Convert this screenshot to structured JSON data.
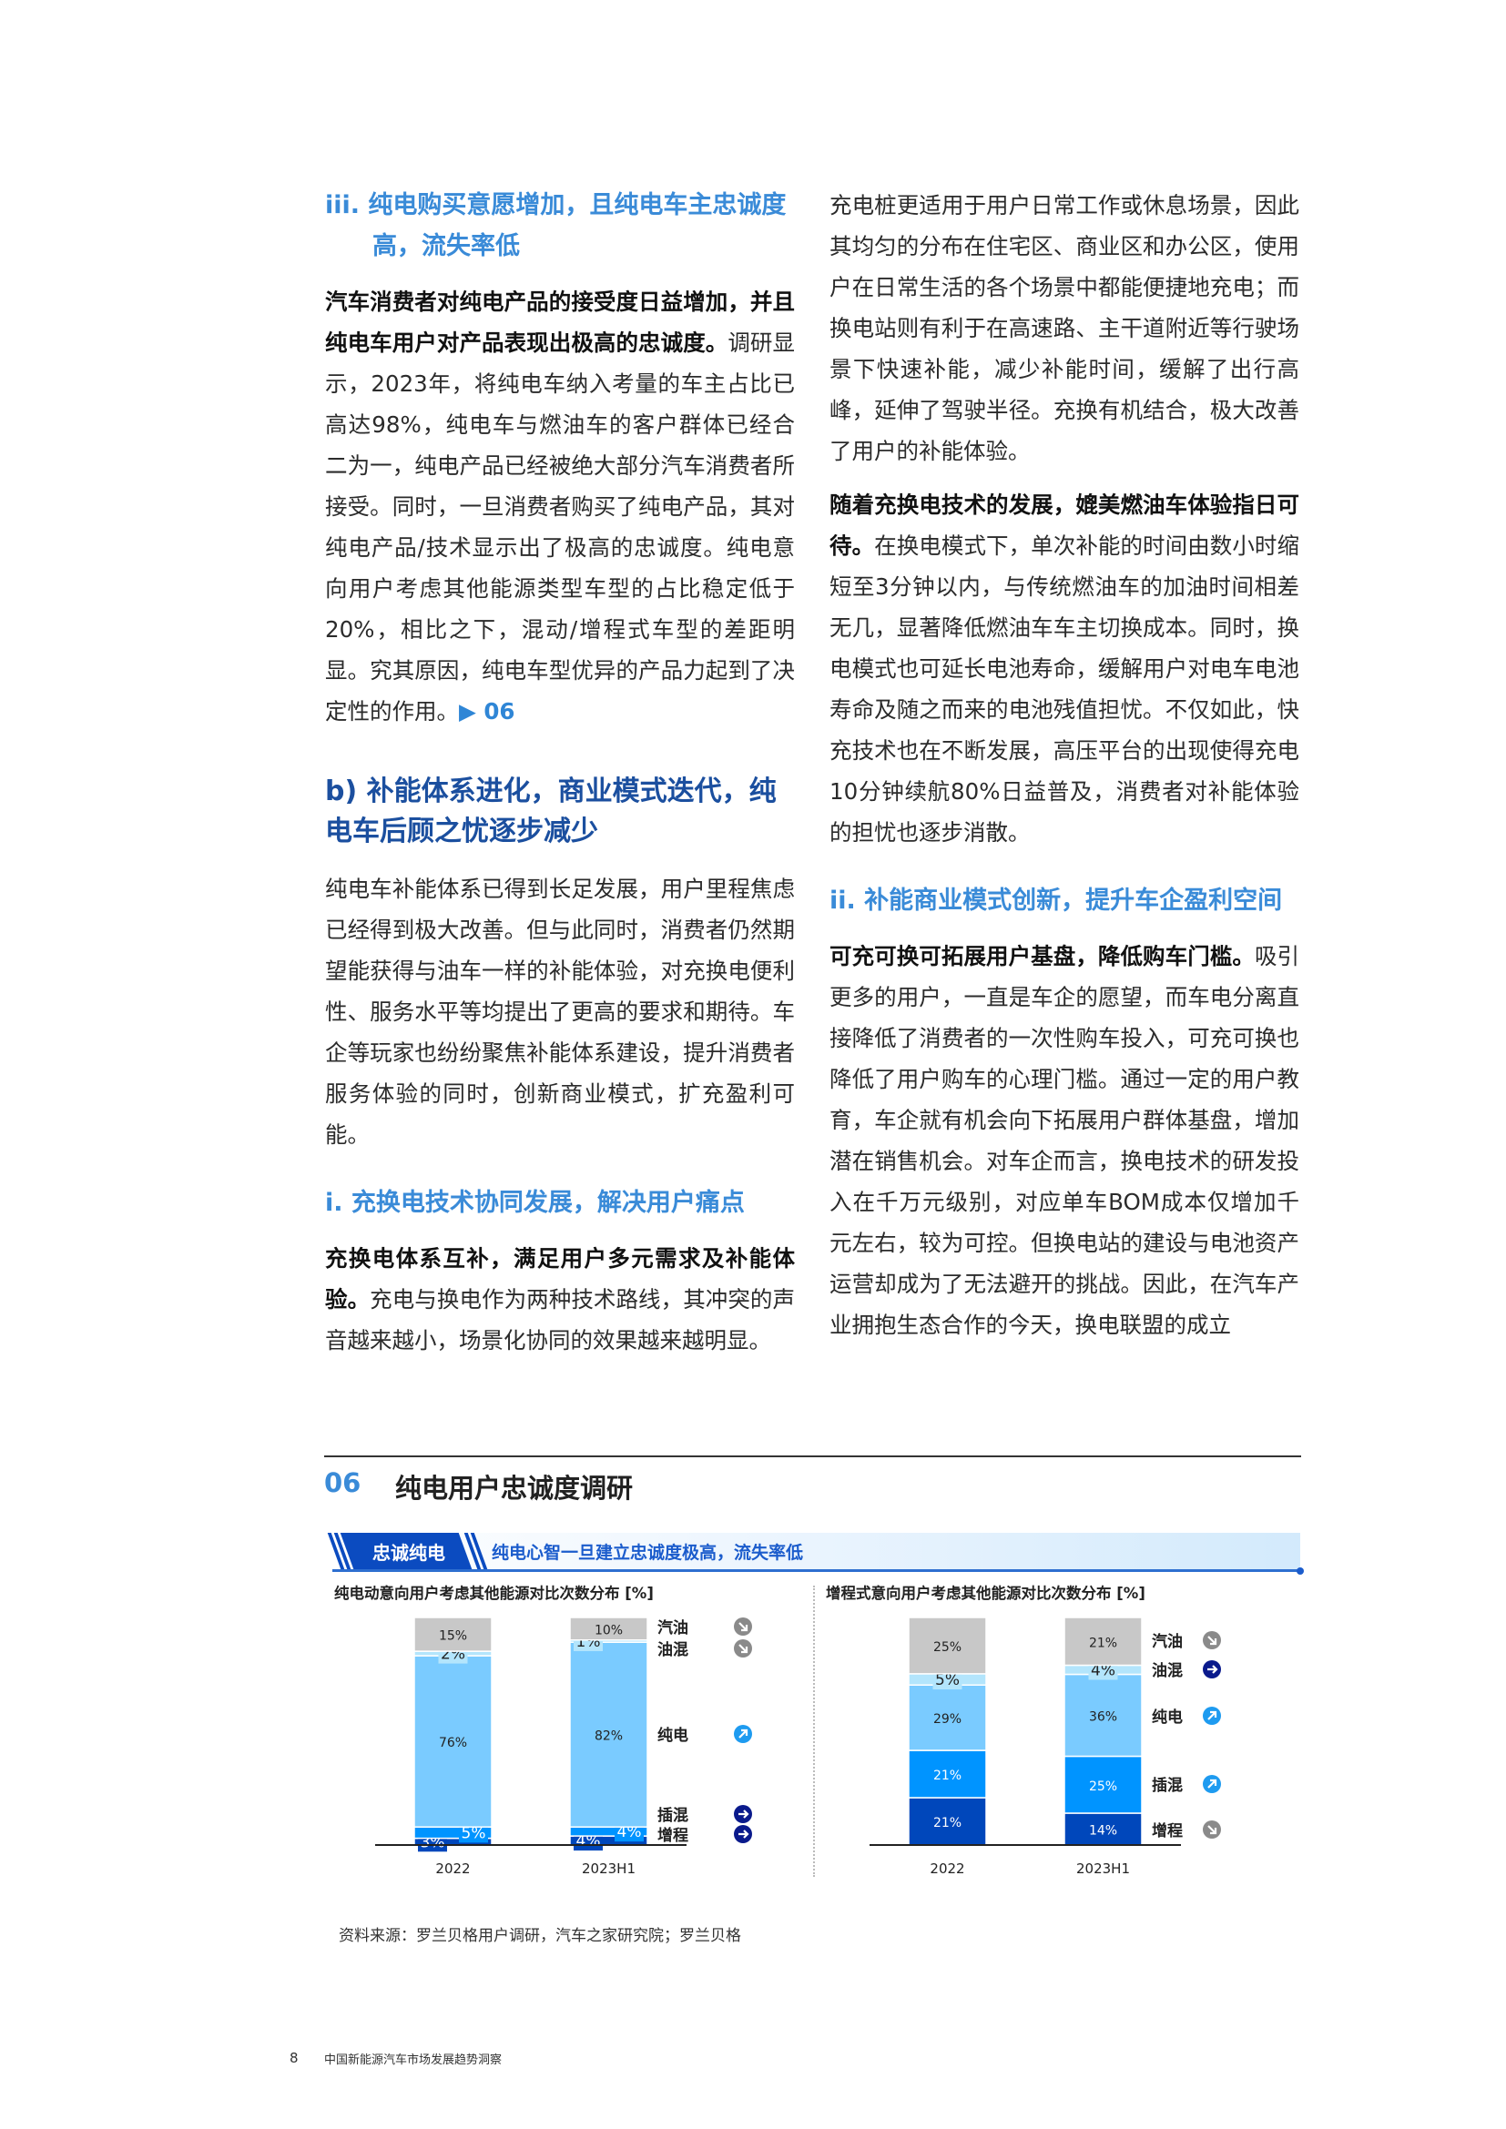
{
  "left_column": {
    "heading_iii": "iii. 纯电购买意愿增加，且纯电车主忠诚度高，流失率低",
    "para1": {
      "bold": "汽车消费者对纯电产品的接受度日益增加，并且纯电车用户对产品表现出极高的忠诚度。",
      "text": "调研显示，2023年，将纯电车纳入考量的车主占比已高达98%，纯电车与燃油车的客户群体已经合二为一，纯电产品已经被绝大部分汽车消费者所接受。同时，一旦消费者购买了纯电产品，其对纯电产品/技术显示出了极高的忠诚度。纯电意向用户考虑其他能源类型车型的占比稳定低于20%，相比之下，混动/增程式车型的差距明显。究其原因，纯电车型优异的产品力起到了决定性的作用。",
      "ref": "▶ 06"
    },
    "heading_b": "b) 补能体系进化，商业模式迭代，纯电车后顾之忧逐步减少",
    "para2": "纯电车补能体系已得到长足发展，用户里程焦虑已经得到极大改善。但与此同时，消费者仍然期望能获得与油车一样的补能体验，对充换电便利性、服务水平等均提出了更高的要求和期待。车企等玩家也纷纷聚焦补能体系建设，提升消费者服务体验的同时，创新商业模式，扩充盈利可能。",
    "heading_i": "i. 充换电技术协同发展，解决用户痛点",
    "para3": {
      "bold": "充换电体系互补，满足用户多元需求及补能体验。",
      "text": "充电与换电作为两种技术路线，其冲突的声音越来越小，场景化协同的效果越来越明显。"
    }
  },
  "right_column": {
    "para1": "充电桩更适用于用户日常工作或休息场景，因此其均匀的分布在住宅区、商业区和办公区，使用户在日常生活的各个场景中都能便捷地充电；而换电站则有利于在高速路、主干道附近等行驶场景下快速补能，减少补能时间，缓解了出行高峰，延伸了驾驶半径。充换有机结合，极大改善了用户的补能体验。",
    "para2": {
      "bold": "随着充换电技术的发展，媲美燃油车体验指日可待。",
      "text": "在换电模式下，单次补能的时间由数小时缩短至3分钟以内，与传统燃油车的加油时间相差无几，显著降低燃油车车主切换成本。同时，换电模式也可延长电池寿命，缓解用户对电车电池寿命及随之而来的电池残值担忧。不仅如此，快充技术也在不断发展，高压平台的出现使得充电10分钟续航80%日益普及，消费者对补能体验的担忧也逐步消散。"
    },
    "heading_ii": "ii. 补能商业模式创新，提升车企盈利空间",
    "para3": {
      "bold": "可充可换可拓展用户基盘，降低购车门槛。",
      "text": "吸引更多的用户，一直是车企的愿望，而车电分离直接降低了消费者的一次性购车投入，可充可换也降低了用户购车的心理门槛。通过一定的用户教育，车企就有机会向下拓展用户群体基盘，增加潜在销售机会。对车企而言，换电技术的研发投入在千万元级别，对应单车BOM成本仅增加千元左右，较为可控。但换电站的建设与电池资产运营却成为了无法避开的挑战。因此，在汽车产业拥抱生态合作的今天，换电联盟的成立"
    }
  },
  "figure": {
    "number": "06",
    "title": "纯电用户忠诚度调研",
    "tag": "忠诚纯电",
    "banner_text": "纯电心智一旦建立忠诚度极高，流失率低",
    "source": "资料来源：罗兰贝格用户调研，汽车之家研究院；罗兰贝格"
  },
  "chart_data": [
    {
      "type": "bar",
      "stacked": true,
      "title": "纯电动意向用户考虑其他能源对比次数分布 [%]",
      "categories": [
        "2022",
        "2023H1"
      ],
      "series": [
        {
          "name": "增程",
          "values": [
            3,
            4
          ],
          "color": "#0047bb",
          "trend": "flat"
        },
        {
          "name": "插混",
          "values": [
            5,
            4
          ],
          "color": "#0094ff",
          "trend": "flat"
        },
        {
          "name": "纯电",
          "values": [
            76,
            82
          ],
          "color": "#7acbff",
          "trend": "up"
        },
        {
          "name": "油混",
          "values": [
            2,
            1
          ],
          "color": "#b3e5fc",
          "trend": "down"
        },
        {
          "name": "汽油",
          "values": [
            15,
            10
          ],
          "color": "#c8c8c8",
          "trend": "down"
        }
      ],
      "unit": "%",
      "legend": "right"
    },
    {
      "type": "bar",
      "stacked": true,
      "title": "增程式意向用户考虑其他能源对比次数分布 [%]",
      "categories": [
        "2022",
        "2023H1"
      ],
      "series": [
        {
          "name": "增程",
          "values": [
            21,
            14
          ],
          "color": "#0047bb",
          "trend": "down"
        },
        {
          "name": "插混",
          "values": [
            21,
            25
          ],
          "color": "#0094ff",
          "trend": "up"
        },
        {
          "name": "纯电",
          "values": [
            29,
            36
          ],
          "color": "#7acbff",
          "trend": "up"
        },
        {
          "name": "油混",
          "values": [
            5,
            4
          ],
          "color": "#b3e5fc",
          "trend": "flat"
        },
        {
          "name": "汽油",
          "values": [
            25,
            21
          ],
          "color": "#c8c8c8",
          "trend": "down"
        }
      ],
      "unit": "%",
      "legend": "right"
    }
  ],
  "trend_colors": {
    "up": "#1e9bf0",
    "down": "#8a8a8a",
    "flat": "#0a1a8c"
  },
  "footer": {
    "page_number": "8",
    "title": "中国新能源汽车市场发展趋势洞察"
  }
}
